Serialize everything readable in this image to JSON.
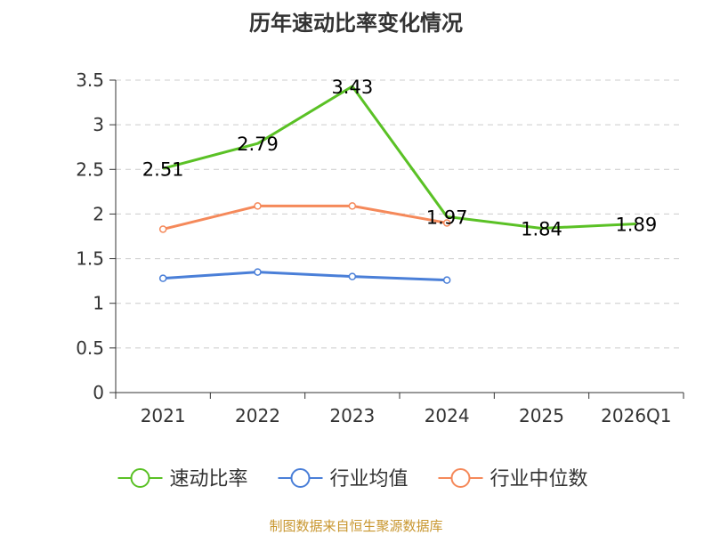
{
  "chart_data": {
    "type": "line",
    "title": "历年速动比率变化情况",
    "categories": [
      "2021",
      "2022",
      "2023",
      "2024",
      "2025",
      "2026Q1"
    ],
    "ylim": [
      0,
      3.5
    ],
    "yticks": [
      "0",
      "0.5",
      "1",
      "1.5",
      "2",
      "2.5",
      "3",
      "3.5"
    ],
    "grid": "horizontal-dashed",
    "legend_position": "bottom",
    "series": [
      {
        "name": "速动比率",
        "color": "#5ac125",
        "values": [
          2.51,
          2.79,
          3.43,
          1.97,
          1.84,
          1.89
        ],
        "labels": [
          "2.51",
          "2.79",
          "3.43",
          "1.97",
          "1.84",
          "1.89"
        ]
      },
      {
        "name": "行业均值",
        "color": "#4a7fd8",
        "values": [
          1.28,
          1.35,
          1.3,
          1.26,
          null,
          null
        ]
      },
      {
        "name": "行业中位数",
        "color": "#f5895a",
        "values": [
          1.83,
          2.09,
          2.09,
          1.9,
          null,
          null
        ]
      }
    ]
  },
  "footer": {
    "source": "制图数据来自恒生聚源数据库"
  }
}
